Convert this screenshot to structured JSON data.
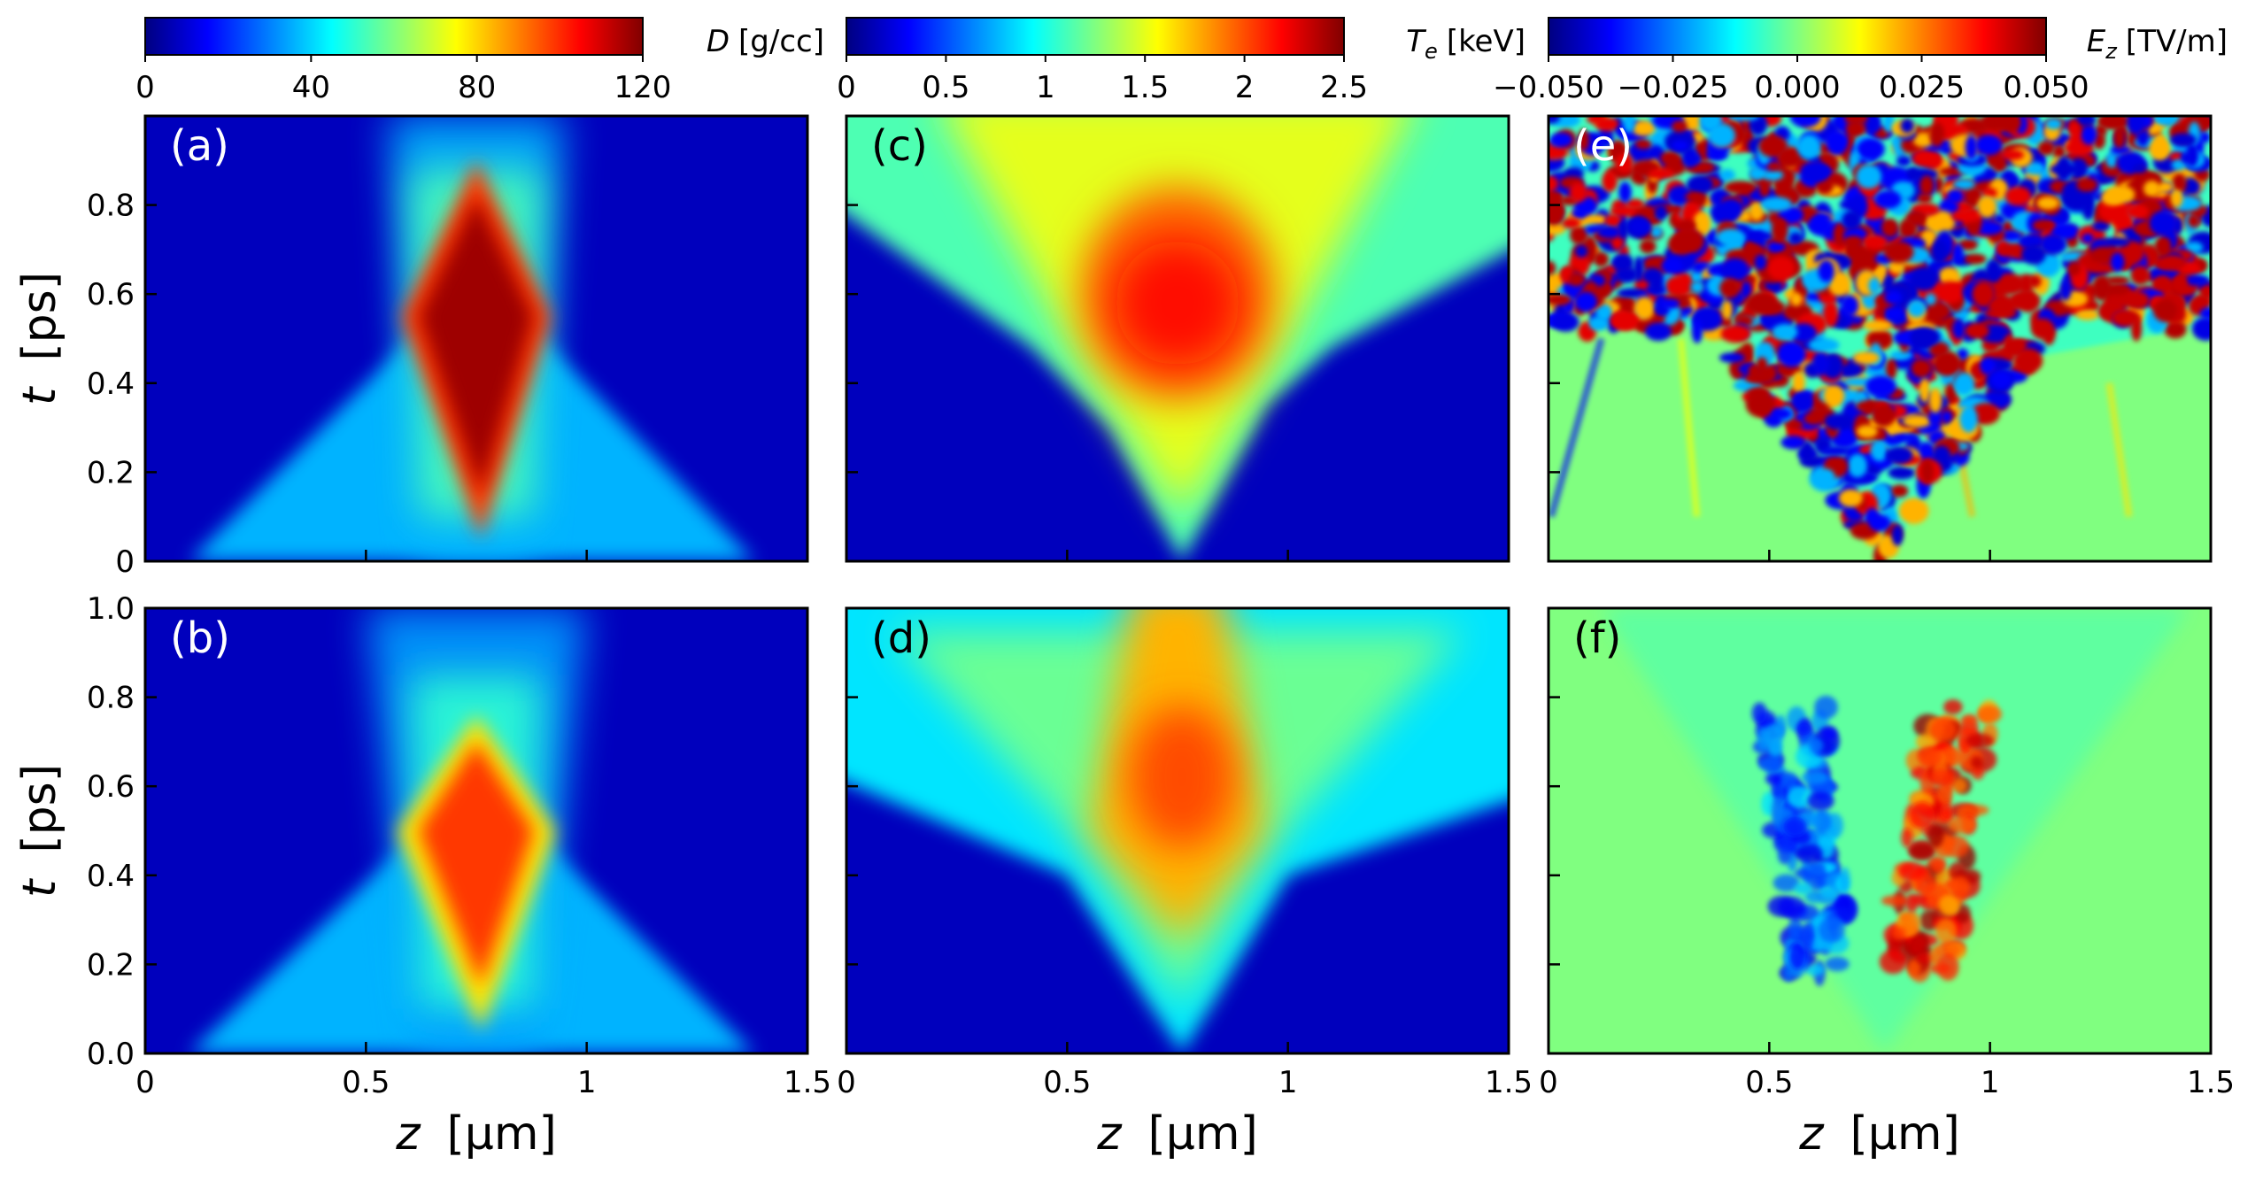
{
  "chart_data": [
    {
      "type": "heatmap",
      "panel_label": "(a)",
      "colormap": "jet",
      "xlim": [
        0,
        1.5
      ],
      "ylim": [
        0,
        1
      ],
      "xticks": [
        0,
        0.5,
        1,
        1.5
      ],
      "yticks": [
        0,
        0.2,
        0.4,
        0.6,
        0.8
      ],
      "show_xticklabels": false,
      "show_yticklabels": true,
      "ylabel": {
        "symbol": "t",
        "unit": "[ps]"
      }
    },
    {
      "type": "heatmap",
      "panel_label": "(b)",
      "colormap": "jet",
      "xlim": [
        0,
        1.5
      ],
      "ylim": [
        0,
        1
      ],
      "xticks": [
        0,
        0.5,
        1,
        1.5
      ],
      "yticks": [
        {
          "value": 0,
          "label": "0.0"
        },
        0.2,
        0.4,
        0.6,
        0.8,
        {
          "value": 1,
          "label": "1.0"
        }
      ],
      "show_xticklabels": true,
      "show_yticklabels": true,
      "xlabel": {
        "symbol": "z",
        "unit": "[μm]"
      },
      "ylabel": {
        "symbol": "t",
        "unit": "[ps]"
      }
    },
    {
      "type": "heatmap",
      "panel_label": "(c)",
      "colormap": "jet",
      "xlim": [
        0,
        1.5
      ],
      "ylim": [
        0,
        1
      ],
      "xticks": [
        0,
        0.5,
        1,
        1.5
      ],
      "yticks": [
        0,
        0.2,
        0.4,
        0.6,
        0.8
      ],
      "show_xticklabels": false,
      "show_yticklabels": false
    },
    {
      "type": "heatmap",
      "panel_label": "(d)",
      "colormap": "jet",
      "xlim": [
        0,
        1.5
      ],
      "ylim": [
        0,
        1
      ],
      "xticks": [
        0,
        0.5,
        1,
        1.5
      ],
      "yticks": [
        0,
        0.2,
        0.4,
        0.6,
        0.8,
        1
      ],
      "show_xticklabels": true,
      "show_yticklabels": false,
      "xlabel": {
        "symbol": "z",
        "unit": "[μm]"
      }
    },
    {
      "type": "heatmap",
      "panel_label": "(e)",
      "colormap": "jet",
      "xlim": [
        0,
        1.5
      ],
      "ylim": [
        0,
        1
      ],
      "xticks": [
        0,
        0.5,
        1,
        1.5
      ],
      "yticks": [
        0,
        0.2,
        0.4,
        0.6,
        0.8
      ],
      "show_xticklabels": false,
      "show_yticklabels": false
    },
    {
      "type": "heatmap",
      "panel_label": "(f)",
      "colormap": "jet",
      "xlim": [
        0,
        1.5
      ],
      "ylim": [
        0,
        1
      ],
      "xticks": [
        0,
        0.5,
        1,
        1.5
      ],
      "yticks": [
        0,
        0.2,
        0.4,
        0.6,
        0.8,
        1
      ],
      "show_xticklabels": true,
      "show_yticklabels": false,
      "xlabel": {
        "symbol": "z",
        "unit": "[μm]"
      }
    }
  ],
  "colorbars": [
    {
      "label": {
        "symbol": "D",
        "unit": "[g/cc]"
      },
      "colormap": "jet",
      "clim": [
        0,
        120
      ],
      "ticks": [
        0,
        40,
        80,
        120
      ]
    },
    {
      "label": {
        "symbol": "T",
        "sub": "e",
        "unit": "[keV]"
      },
      "colormap": "jet",
      "clim": [
        0,
        2.5
      ],
      "ticks": [
        0,
        0.5,
        1,
        1.5,
        2,
        2.5
      ]
    },
    {
      "label": {
        "symbol": "E",
        "sub": "z",
        "unit": "[TV/m]"
      },
      "colormap": "jet",
      "clim": [
        -0.05,
        0.05
      ],
      "ticks": [
        {
          "value": -0.05,
          "label": "−0.050"
        },
        {
          "value": -0.025,
          "label": "−0.025"
        },
        {
          "value": 0,
          "label": "0.000"
        },
        {
          "value": 0.025,
          "label": "0.025"
        },
        {
          "value": 0.05,
          "label": "0.050"
        }
      ]
    }
  ]
}
